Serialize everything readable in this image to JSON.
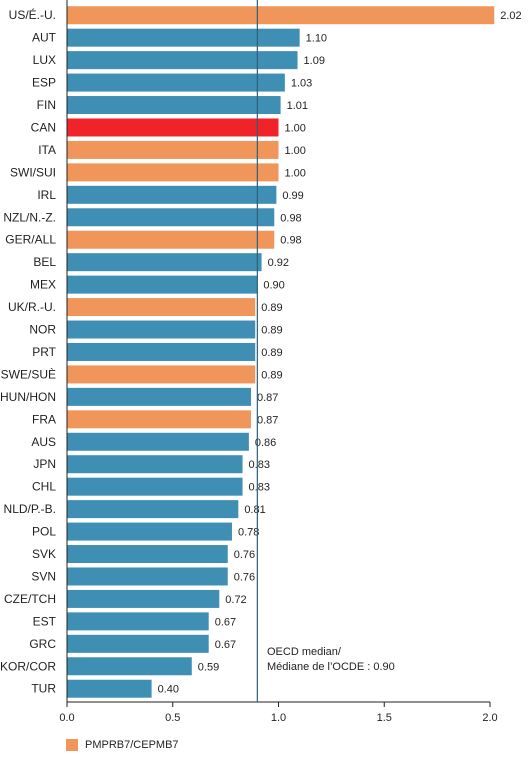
{
  "chart_data": {
    "type": "bar",
    "orientation": "horizontal",
    "categories": [
      "US/É.-U.",
      "AUT",
      "LUX",
      "ESP",
      "FIN",
      "CAN",
      "ITA",
      "SWI/SUI",
      "IRL",
      "NZL/N.-Z.",
      "GER/ALL",
      "BEL",
      "MEX",
      "UK/R.-U.",
      "NOR",
      "PRT",
      "SWE/SUÈ",
      "HUN/HON",
      "FRA",
      "AUS",
      "JPN",
      "CHL",
      "NLD/P.-B.",
      "POL",
      "SVK",
      "SVN",
      "CZE/TCH",
      "EST",
      "GRC",
      "KOR/COR",
      "TUR"
    ],
    "values": [
      2.02,
      1.1,
      1.09,
      1.03,
      1.01,
      1.0,
      1.0,
      1.0,
      0.99,
      0.98,
      0.98,
      0.92,
      0.9,
      0.89,
      0.89,
      0.89,
      0.89,
      0.87,
      0.87,
      0.86,
      0.83,
      0.83,
      0.81,
      0.78,
      0.76,
      0.76,
      0.72,
      0.67,
      0.67,
      0.59,
      0.4
    ],
    "value_labels": [
      "2.02",
      "1.10",
      "1.09",
      "1.03",
      "1.01",
      "1.00",
      "1.00",
      "1.00",
      "0.99",
      "0.98",
      "0.98",
      "0.92",
      "0.90",
      "0.89",
      "0.89",
      "0.89",
      "0.89",
      "0.87",
      "0.87",
      "0.86",
      "0.83",
      "0.83",
      "0.81",
      "0.78",
      "0.76",
      "0.76",
      "0.72",
      "0.67",
      "0.67",
      "0.59",
      "0.40"
    ],
    "groups": [
      "pmprb7",
      "other",
      "other",
      "other",
      "other",
      "highlight",
      "pmprb7",
      "pmprb7",
      "other",
      "other",
      "pmprb7",
      "other",
      "other",
      "pmprb7",
      "other",
      "other",
      "pmprb7",
      "other",
      "pmprb7",
      "other",
      "other",
      "other",
      "other",
      "other",
      "other",
      "other",
      "other",
      "other",
      "other",
      "other",
      "other"
    ],
    "colors": {
      "pmprb7": "#f0965a",
      "other": "#3f8fb5",
      "highlight": "#ef2328",
      "median_line": "#2e5f7a"
    },
    "xlim": [
      0,
      2.0
    ],
    "ticks": [
      0.0,
      0.5,
      1.0,
      1.5,
      2.0
    ],
    "tick_labels": [
      "0.0",
      "0.5",
      "1.0",
      "1.5",
      "2.0"
    ],
    "median": {
      "value": 0.9,
      "label_line1": "OECD median/",
      "label_line2": "Médiane de l’OCDE : 0.90"
    },
    "legend": {
      "label": "PMPRB7/CEPMB7",
      "color": "#f0965a",
      "placement": "bottom-left"
    },
    "grid": false
  }
}
